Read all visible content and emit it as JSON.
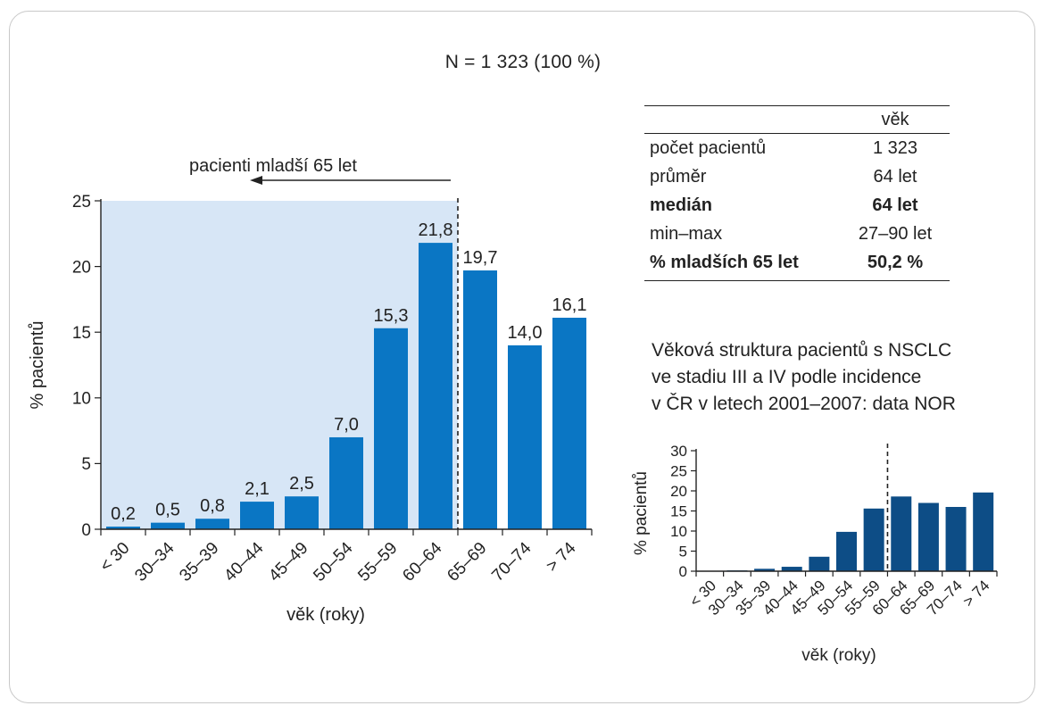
{
  "header": {
    "n_label": "N = 1 323  (100 %)"
  },
  "stats": {
    "column_header": "věk",
    "rows": [
      {
        "label": "počet pacientů",
        "value": "1 323",
        "bold": false
      },
      {
        "label": "průměr",
        "value": "64 let",
        "bold": false
      },
      {
        "label": "medián",
        "value": "64 let",
        "bold": true
      },
      {
        "label": "min–max",
        "value": "27–90 let",
        "bold": false
      },
      {
        "label": "% mladších 65 let",
        "value": "50,2 %",
        "bold": true
      }
    ]
  },
  "inset_caption": [
    "Věková struktura pacientů s NSCLC",
    "ve stadiu III a IV podle incidence",
    "v ČR v letech 2001–2007: data NOR"
  ],
  "chart_data": [
    {
      "type": "bar",
      "categories": [
        "< 30",
        "30–34",
        "35–39",
        "40–44",
        "45–49",
        "50–54",
        "55–59",
        "60–64",
        "65–69",
        "70–74",
        "> 74"
      ],
      "values": [
        0.2,
        0.5,
        0.8,
        2.1,
        2.5,
        7.0,
        15.3,
        21.8,
        19.7,
        14.0,
        16.1
      ],
      "data_labels": [
        "0,2",
        "0,5",
        "0,8",
        "2,1",
        "2,5",
        "7,0",
        "15,3",
        "21,8",
        "19,7",
        "14,0",
        "16,1"
      ],
      "xlabel": "věk (roky)",
      "ylabel": "% pacientů",
      "ylim": [
        0,
        25
      ],
      "yticks": [
        0,
        5,
        10,
        15,
        20,
        25
      ],
      "bar_color": "#0a76c4",
      "shaded_region": {
        "categories": [
          "< 30",
          "60–64"
        ],
        "color": "#d7e6f6"
      },
      "divider_between": [
        "60–64",
        "65–69"
      ],
      "annotation": "pacienti mladší 65 let",
      "grid": false
    },
    {
      "type": "bar",
      "categories": [
        "< 30",
        "30–34",
        "35–39",
        "40–44",
        "45–49",
        "50–54",
        "55–59",
        "60–64",
        "65–69",
        "70–74",
        "> 74"
      ],
      "values": [
        0.1,
        0.2,
        0.6,
        1.1,
        3.6,
        9.8,
        15.6,
        18.6,
        17.0,
        16.0,
        19.6
      ],
      "xlabel": "věk (roky)",
      "ylabel": "% pacientů",
      "ylim": [
        0,
        30
      ],
      "yticks": [
        0,
        5,
        10,
        15,
        20,
        25,
        30
      ],
      "bar_color": "#0d4d86",
      "divider_between": [
        "55–59",
        "60–64"
      ],
      "grid": false
    }
  ]
}
